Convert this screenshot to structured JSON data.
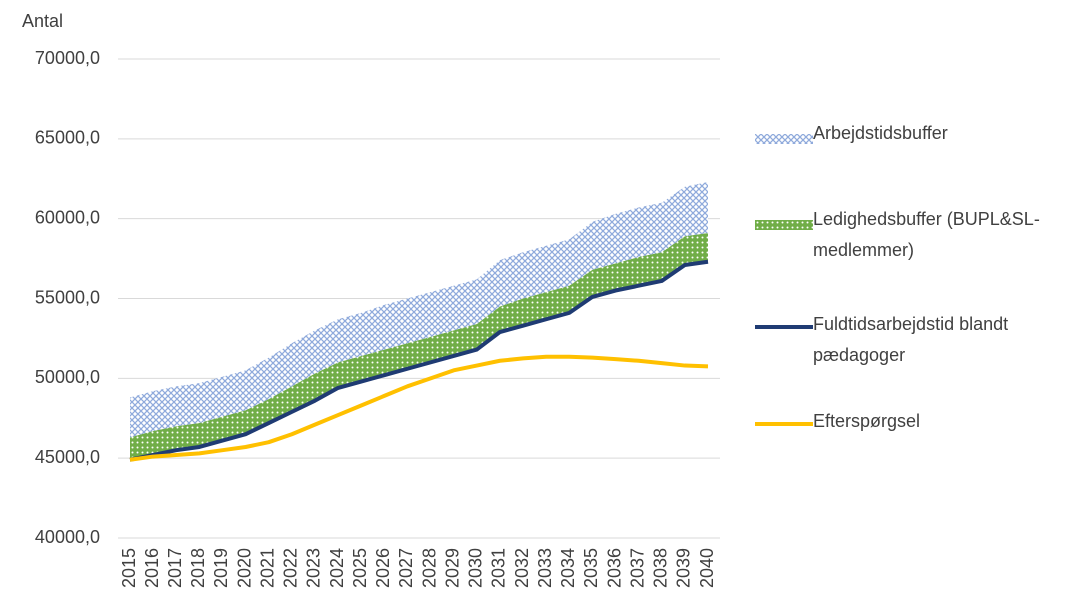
{
  "chart_data": {
    "type": "area",
    "y_label": "Antal",
    "categories": [
      "2015",
      "2016",
      "2017",
      "2018",
      "2019",
      "2020",
      "2021",
      "2022",
      "2023",
      "2024",
      "2025",
      "2026",
      "2027",
      "2028",
      "2029",
      "2030",
      "2031",
      "2032",
      "2033",
      "2034",
      "2035",
      "2036",
      "2037",
      "2038",
      "2039",
      "2040"
    ],
    "series": [
      {
        "name": "Arbejdstidsbuffer",
        "type": "area",
        "color": "#8faadc",
        "values": [
          2500,
          2500,
          2500,
          2500,
          2500,
          2500,
          2600,
          2700,
          2700,
          2700,
          2700,
          2800,
          2800,
          2800,
          2800,
          2800,
          2900,
          2900,
          2900,
          2900,
          3000,
          3100,
          3100,
          3100,
          3100,
          3200
        ]
      },
      {
        "name": "Ledighedsbuffer (BUPL&SL-medlemmer)",
        "type": "area",
        "color": "#70ad47",
        "values": [
          1400,
          1500,
          1500,
          1500,
          1500,
          1500,
          1500,
          1600,
          1700,
          1600,
          1600,
          1600,
          1600,
          1600,
          1600,
          1600,
          1600,
          1700,
          1700,
          1700,
          1700,
          1700,
          1800,
          1800,
          1800,
          1800
        ]
      },
      {
        "name": "Fuldtidsarbejdstid blandt pædagoger",
        "type": "line",
        "color": "#1f3b73",
        "values": [
          44900,
          45200,
          45500,
          45700,
          46100,
          46500,
          47200,
          47900,
          48600,
          49400,
          49800,
          50200,
          50600,
          51000,
          51400,
          51800,
          52900,
          53300,
          53700,
          54100,
          55100,
          55500,
          55800,
          56100,
          57100,
          57300
        ]
      },
      {
        "name": "Efterspørgsel",
        "type": "line",
        "color": "#ffc000",
        "values": [
          44900,
          45100,
          45200,
          45300,
          45500,
          45700,
          46000,
          46500,
          47100,
          47700,
          48300,
          48900,
          49500,
          50000,
          50500,
          50800,
          51100,
          51250,
          51350,
          51350,
          51300,
          51200,
          51100,
          50950,
          50800,
          50750
        ]
      }
    ],
    "ylim": [
      40000,
      70000
    ],
    "yticks": [
      {
        "value": 40000,
        "label": "40000,0"
      },
      {
        "value": 45000,
        "label": "45000,0"
      },
      {
        "value": 50000,
        "label": "50000,0"
      },
      {
        "value": 55000,
        "label": "55000,0"
      },
      {
        "value": 60000,
        "label": "60000,0"
      },
      {
        "value": 65000,
        "label": "65000,0"
      },
      {
        "value": 70000,
        "label": "70000,0"
      }
    ],
    "grid": true,
    "legend": "right"
  }
}
